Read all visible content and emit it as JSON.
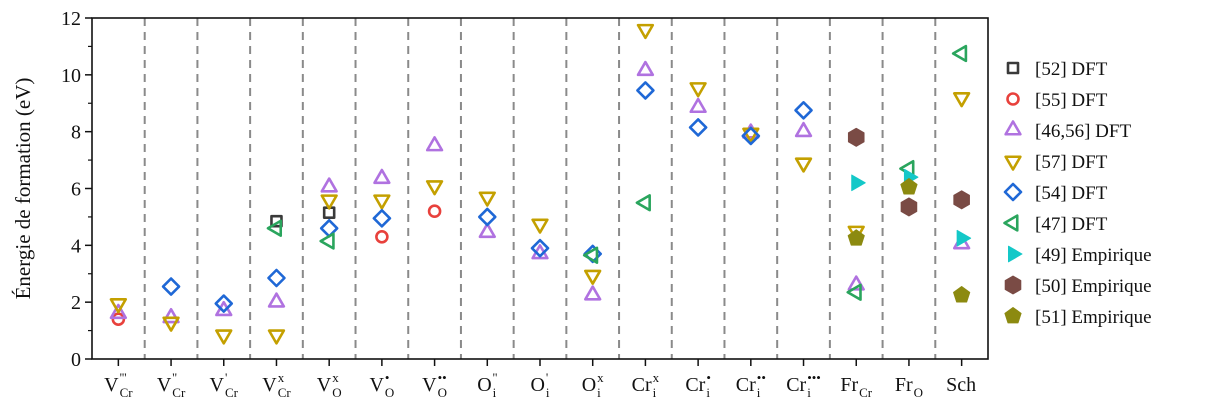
{
  "chart_data": {
    "type": "scatter",
    "ylabel": "Énergie de formation (eV)",
    "ylim": [
      0,
      12
    ],
    "yticks": [
      0,
      2,
      4,
      6,
      8,
      10,
      12
    ],
    "grid": "vertical dashed separators between categories",
    "legend_position": "right",
    "categories": [
      {
        "main": "V",
        "sup": "'''",
        "sub": "Cr"
      },
      {
        "main": "V",
        "sup": "''",
        "sub": "Cr"
      },
      {
        "main": "V",
        "sup": "'",
        "sub": "Cr"
      },
      {
        "main": "V",
        "sup": "x",
        "sub": "Cr"
      },
      {
        "main": "V",
        "sup": "x",
        "sub": "O"
      },
      {
        "main": "V",
        "sup": "•",
        "sub": "O"
      },
      {
        "main": "V",
        "sup": "••",
        "sub": "O"
      },
      {
        "main": "O",
        "sup": "''",
        "sub": "i"
      },
      {
        "main": "O",
        "sup": "'",
        "sub": "i"
      },
      {
        "main": "O",
        "sup": "x",
        "sub": "i"
      },
      {
        "main": "Cr",
        "sup": "x",
        "sub": "i"
      },
      {
        "main": "Cr",
        "sup": "•",
        "sub": "i"
      },
      {
        "main": "Cr",
        "sup": "••",
        "sub": "i"
      },
      {
        "main": "Cr",
        "sup": "•••",
        "sub": "i"
      },
      {
        "main": "Fr",
        "sup": "",
        "sub": "Cr"
      },
      {
        "main": "Fr",
        "sup": "",
        "sub": "O"
      },
      {
        "main": "Sch",
        "sup": "",
        "sub": ""
      }
    ],
    "series": [
      {
        "name": "[52] DFT",
        "marker": "square",
        "color": "#3a3a3a",
        "fill": false,
        "points": [
          [
            3,
            4.85
          ],
          [
            4,
            5.15
          ]
        ]
      },
      {
        "name": "[55] DFT",
        "marker": "circle",
        "color": "#e8413c",
        "fill": false,
        "points": [
          [
            0,
            1.4
          ],
          [
            5,
            4.3
          ],
          [
            6,
            5.2
          ]
        ]
      },
      {
        "name": "[46,56] DFT",
        "marker": "triangle-up",
        "color": "#b072e0",
        "fill": false,
        "points": [
          [
            0,
            1.6
          ],
          [
            1,
            1.45
          ],
          [
            2,
            1.7
          ],
          [
            3,
            2.0
          ],
          [
            4,
            6.05
          ],
          [
            5,
            6.35
          ],
          [
            6,
            7.5
          ],
          [
            7,
            4.45
          ],
          [
            8,
            3.7
          ],
          [
            9,
            2.25
          ],
          [
            10,
            10.15
          ],
          [
            11,
            8.85
          ],
          [
            12,
            7.95
          ],
          [
            13,
            8.0
          ],
          [
            14,
            2.6
          ],
          [
            16,
            4.05
          ]
        ]
      },
      {
        "name": "[57] DFT",
        "marker": "triangle-down",
        "color": "#c4a000",
        "fill": false,
        "points": [
          [
            0,
            1.95
          ],
          [
            1,
            1.3
          ],
          [
            2,
            0.85
          ],
          [
            3,
            0.85
          ],
          [
            4,
            5.6
          ],
          [
            5,
            5.6
          ],
          [
            6,
            6.1
          ],
          [
            7,
            5.7
          ],
          [
            8,
            4.75
          ],
          [
            9,
            2.95
          ],
          [
            10,
            11.6
          ],
          [
            11,
            9.55
          ],
          [
            12,
            7.95
          ],
          [
            13,
            6.9
          ],
          [
            14,
            4.5
          ],
          [
            16,
            9.2
          ]
        ]
      },
      {
        "name": "[54] DFT",
        "marker": "diamond",
        "color": "#1f68d6",
        "fill": false,
        "points": [
          [
            1,
            2.55
          ],
          [
            2,
            1.95
          ],
          [
            3,
            2.85
          ],
          [
            4,
            4.6
          ],
          [
            5,
            4.95
          ],
          [
            7,
            5.0
          ],
          [
            8,
            3.9
          ],
          [
            9,
            3.7
          ],
          [
            10,
            9.45
          ],
          [
            11,
            8.15
          ],
          [
            12,
            7.85
          ],
          [
            13,
            8.75
          ]
        ]
      },
      {
        "name": "[47] DFT",
        "marker": "triangle-left",
        "color": "#2aa55d",
        "fill": false,
        "points": [
          [
            3,
            4.6
          ],
          [
            4,
            4.15
          ],
          [
            9,
            3.65
          ],
          [
            10,
            5.5
          ],
          [
            14,
            2.35
          ],
          [
            15,
            6.7
          ],
          [
            16,
            10.75
          ]
        ]
      },
      {
        "name": "[49] Empirique",
        "marker": "triangle-right",
        "color": "#14c8c8",
        "fill": true,
        "points": [
          [
            14,
            6.2
          ],
          [
            15,
            6.4
          ],
          [
            16,
            4.25
          ]
        ]
      },
      {
        "name": "[50] Empirique",
        "marker": "hexagon",
        "color": "#7a4b45",
        "fill": true,
        "points": [
          [
            14,
            7.8
          ],
          [
            15,
            5.35
          ],
          [
            16,
            5.6
          ]
        ]
      },
      {
        "name": "[51] Empirique",
        "marker": "pentagon",
        "color": "#8c8a10",
        "fill": true,
        "points": [
          [
            14,
            4.25
          ],
          [
            15,
            6.05
          ],
          [
            16,
            2.25
          ]
        ]
      }
    ]
  }
}
